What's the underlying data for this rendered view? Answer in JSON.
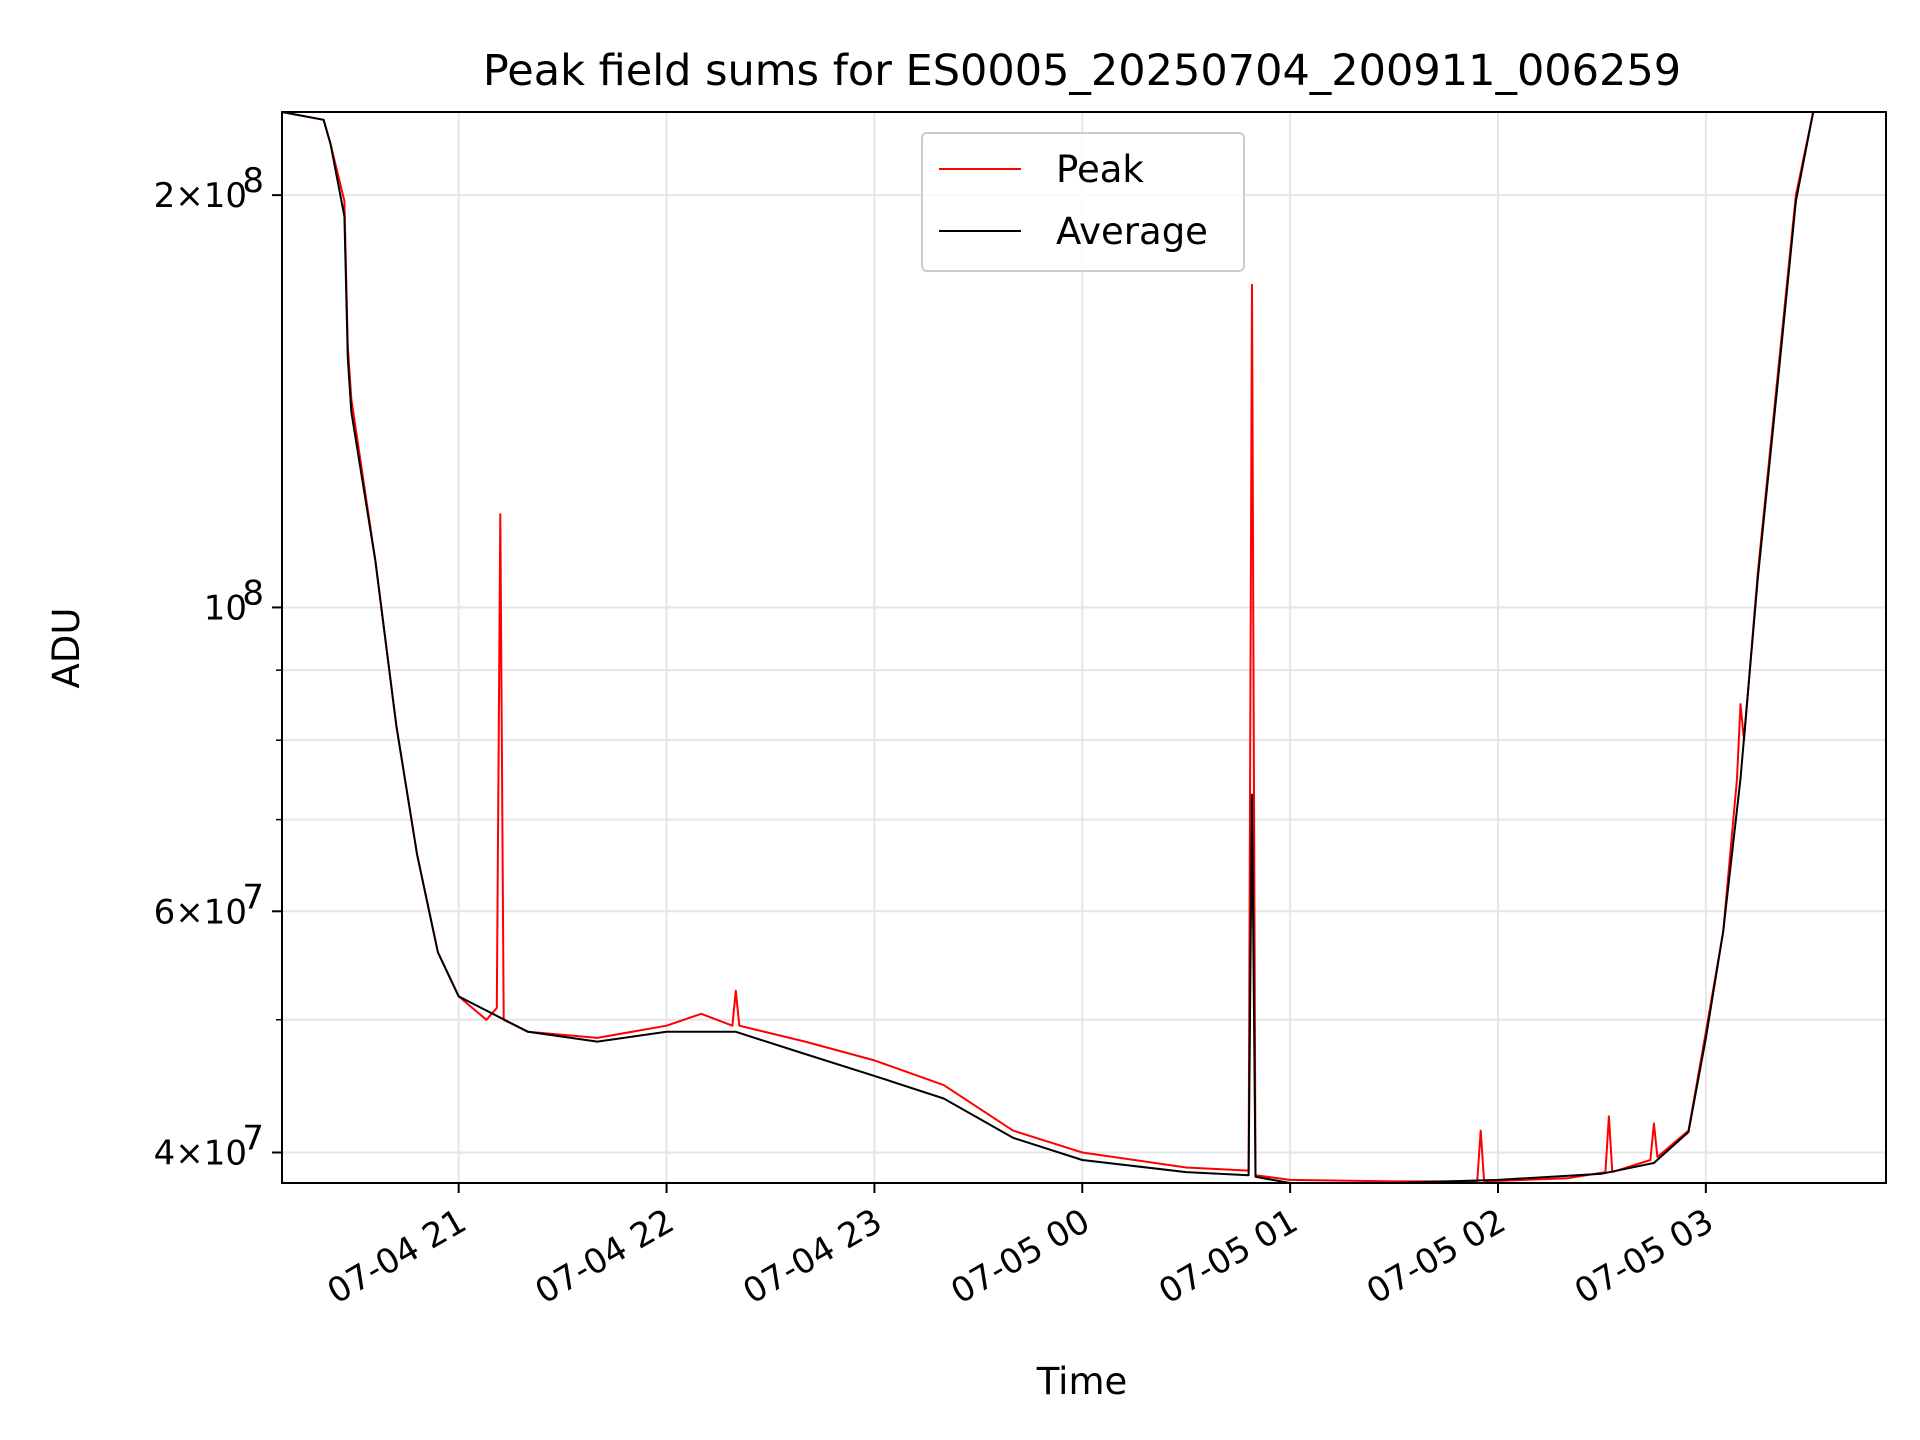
{
  "chart_data": {
    "type": "line",
    "title": "Peak field sums for ES0005_20250704_200911_006259",
    "xlabel": "Time",
    "ylabel": "ADU",
    "xlim": [
      "2025-07-04 20:09",
      "2025-07-05 03:52"
    ],
    "ylim": [
      38000000,
      230000000
    ],
    "yscale": "log",
    "grid": true,
    "legend": "upper center",
    "x_ticks": [
      {
        "value": "2025-07-04 21:00",
        "label": "07-04 21"
      },
      {
        "value": "2025-07-04 22:00",
        "label": "07-04 22"
      },
      {
        "value": "2025-07-04 23:00",
        "label": "07-04 23"
      },
      {
        "value": "2025-07-05 00:00",
        "label": "07-05 00"
      },
      {
        "value": "2025-07-05 01:00",
        "label": "07-05 01"
      },
      {
        "value": "2025-07-05 02:00",
        "label": "07-05 02"
      },
      {
        "value": "2025-07-05 03:00",
        "label": "07-05 03"
      }
    ],
    "y_ticks": [
      {
        "value": 40000000,
        "mantissa": "4",
        "exponent": "7"
      },
      {
        "value": 60000000,
        "mantissa": "6",
        "exponent": "7"
      },
      {
        "value": 100000000,
        "mantissa": "",
        "exponent": "8"
      },
      {
        "value": 200000000,
        "mantissa": "2",
        "exponent": "8"
      }
    ],
    "y_minor_ticks": [
      50000000,
      70000000,
      80000000,
      90000000
    ],
    "series": [
      {
        "name": "Peak",
        "color": "#ff0000",
        "x": [
          "2025-07-04 20:09",
          "2025-07-04 20:21",
          "2025-07-04 20:23",
          "2025-07-04 20:27",
          "2025-07-04 20:28",
          "2025-07-04 20:29",
          "2025-07-04 20:36",
          "2025-07-04 20:42",
          "2025-07-04 20:48",
          "2025-07-04 20:54",
          "2025-07-04 21:00",
          "2025-07-04 21:08",
          "2025-07-04 21:11",
          "2025-07-04 21:12",
          "2025-07-04 21:13",
          "2025-07-04 21:20",
          "2025-07-04 21:40",
          "2025-07-04 22:00",
          "2025-07-04 22:10",
          "2025-07-04 22:19",
          "2025-07-04 22:20",
          "2025-07-04 22:21",
          "2025-07-04 22:40",
          "2025-07-04 23:00",
          "2025-07-04 23:20",
          "2025-07-04 23:40",
          "2025-07-05 00:00",
          "2025-07-05 00:30",
          "2025-07-05 00:48",
          "2025-07-05 00:49",
          "2025-07-05 00:50",
          "2025-07-05 01:00",
          "2025-07-05 01:30",
          "2025-07-05 01:54",
          "2025-07-05 01:55",
          "2025-07-05 01:56",
          "2025-07-05 02:20",
          "2025-07-05 02:31",
          "2025-07-05 02:32",
          "2025-07-05 02:33",
          "2025-07-05 02:44",
          "2025-07-05 02:45",
          "2025-07-05 02:46",
          "2025-07-05 02:55",
          "2025-07-05 03:00",
          "2025-07-05 03:05",
          "2025-07-05 03:09",
          "2025-07-05 03:10",
          "2025-07-05 03:11",
          "2025-07-05 03:15",
          "2025-07-05 03:21",
          "2025-07-05 03:26",
          "2025-07-05 03:31"
        ],
        "y": [
          230000000,
          227000000,
          218000000,
          198000000,
          155000000,
          142000000,
          108000000,
          82000000,
          66000000,
          56000000,
          52000000,
          50000000,
          51000000,
          117000000,
          50000000,
          49000000,
          48500000,
          49500000,
          50500000,
          49500000,
          52500000,
          49500000,
          48200000,
          46700000,
          44800000,
          41500000,
          40000000,
          39000000,
          38800000,
          172000000,
          38500000,
          38200000,
          38100000,
          38100000,
          41500000,
          38100000,
          38300000,
          38700000,
          42500000,
          38700000,
          39500000,
          42000000,
          39700000,
          41500000,
          49000000,
          58000000,
          75000000,
          85000000,
          80000000,
          106000000,
          150000000,
          200000000,
          230000000
        ]
      },
      {
        "name": "Average",
        "color": "#000000",
        "x": [
          "2025-07-04 20:09",
          "2025-07-04 20:21",
          "2025-07-04 20:23",
          "2025-07-04 20:27",
          "2025-07-04 20:28",
          "2025-07-04 20:29",
          "2025-07-04 20:36",
          "2025-07-04 20:42",
          "2025-07-04 20:48",
          "2025-07-04 20:54",
          "2025-07-04 21:00",
          "2025-07-04 21:20",
          "2025-07-04 21:40",
          "2025-07-04 22:00",
          "2025-07-04 22:20",
          "2025-07-04 22:40",
          "2025-07-04 23:00",
          "2025-07-04 23:20",
          "2025-07-04 23:40",
          "2025-07-05 00:00",
          "2025-07-05 00:30",
          "2025-07-05 00:48",
          "2025-07-05 00:49",
          "2025-07-05 00:50",
          "2025-07-05 01:00",
          "2025-07-05 01:30",
          "2025-07-05 02:00",
          "2025-07-05 02:30",
          "2025-07-05 02:45",
          "2025-07-05 02:55",
          "2025-07-05 03:00",
          "2025-07-05 03:05",
          "2025-07-05 03:10",
          "2025-07-05 03:15",
          "2025-07-05 03:21",
          "2025-07-05 03:26",
          "2025-07-05 03:31"
        ],
        "y": [
          230000000,
          227000000,
          218000000,
          193000000,
          152000000,
          139000000,
          108000000,
          82000000,
          66000000,
          56000000,
          52000000,
          49000000,
          48200000,
          49000000,
          49000000,
          47200000,
          45500000,
          43800000,
          41000000,
          39500000,
          38700000,
          38500000,
          73000000,
          38400000,
          38000000,
          38000000,
          38200000,
          38600000,
          39300000,
          41400000,
          48500000,
          58000000,
          75000000,
          105000000,
          148000000,
          198000000,
          230000000
        ]
      }
    ]
  }
}
